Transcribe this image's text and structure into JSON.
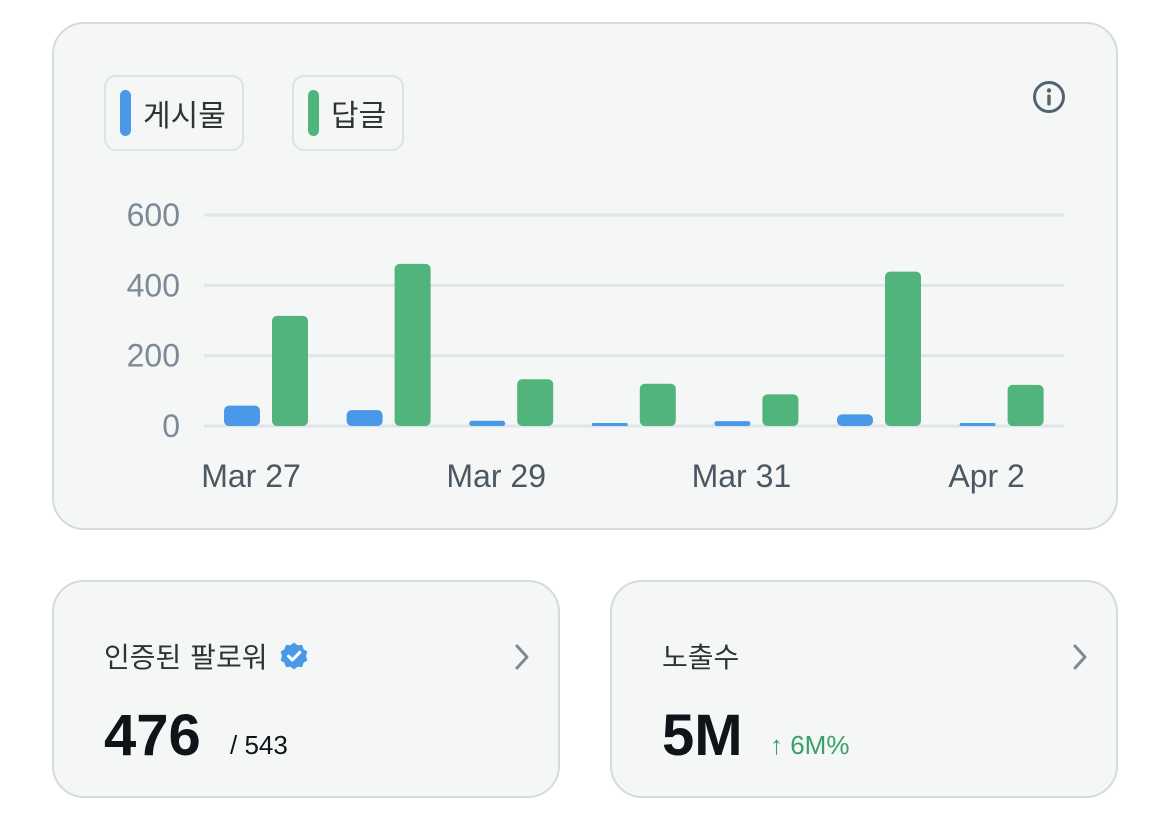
{
  "legend": [
    {
      "label": "게시물",
      "color": "#4a99e9"
    },
    {
      "label": "답글",
      "color": "#52b47d"
    }
  ],
  "info_icon": "info-icon",
  "chart_data": {
    "type": "bar",
    "categories": [
      "Mar 27",
      "Mar 28",
      "Mar 29",
      "Mar 30",
      "Mar 31",
      "Apr 1",
      "Apr 2"
    ],
    "x_tick_labels": [
      "Mar 27",
      "Mar 29",
      "Mar 31",
      "Apr 2"
    ],
    "series": [
      {
        "name": "게시물",
        "color": "#4a99e9",
        "values": [
          58,
          45,
          15,
          5,
          14,
          33,
          6
        ]
      },
      {
        "name": "답글",
        "color": "#52b47d",
        "values": [
          313,
          461,
          133,
          120,
          90,
          439,
          117
        ]
      }
    ],
    "y_ticks": [
      0,
      200,
      400,
      600
    ],
    "ylim": [
      0,
      600
    ],
    "grid": true,
    "legend_position": "top-left"
  },
  "followers": {
    "title": "인증된 팔로워",
    "value": "476",
    "total": "/ 543",
    "badge_icon": "verified-badge-icon",
    "chevron_icon": "chevron-right-icon"
  },
  "impressions": {
    "title": "노출수",
    "value": "5M",
    "change": "↑ 6M%",
    "chevron_icon": "chevron-right-icon"
  }
}
